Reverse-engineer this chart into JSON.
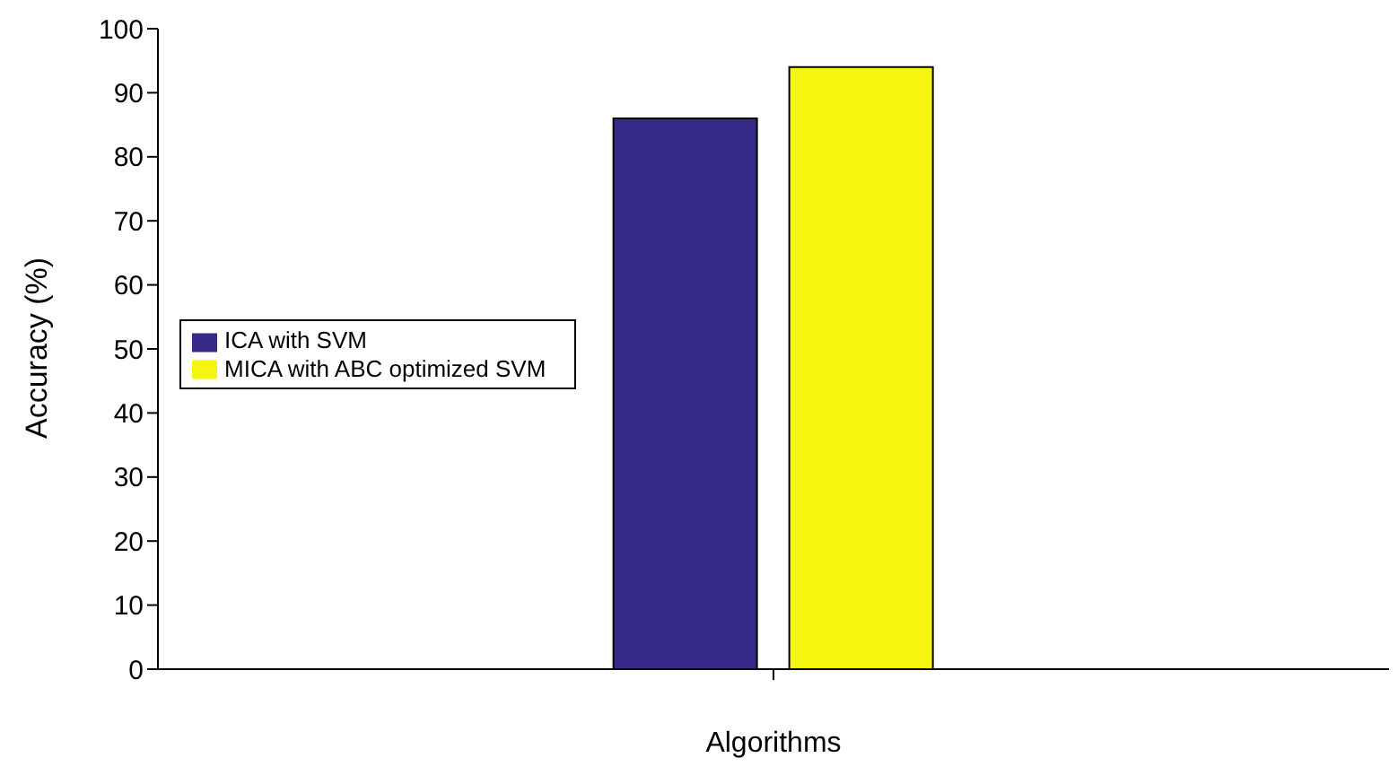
{
  "chart_data": {
    "type": "bar",
    "xlabel": "Algorithms",
    "ylabel": "Accuracy (%)",
    "categories": [
      null
    ],
    "series": [
      {
        "name": "ICA with SVM",
        "color": "#352a87",
        "values": [
          86
        ]
      },
      {
        "name": "MICA with ABC optimized SVM",
        "color": "#f5f510",
        "values": [
          94
        ]
      }
    ],
    "ylim": [
      0,
      100
    ],
    "yticks": [
      0,
      10,
      20,
      30,
      40,
      50,
      60,
      70,
      80,
      90,
      100
    ],
    "grid": false,
    "legend": "left"
  }
}
